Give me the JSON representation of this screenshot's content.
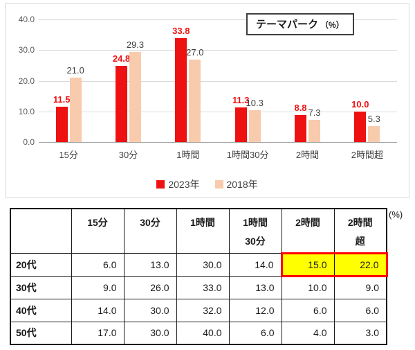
{
  "chart": {
    "title": "テーマパーク",
    "title_unit": "（%）",
    "ylim": [
      0,
      40
    ],
    "y_ticks": [
      "40.0",
      "30.0",
      "20.0",
      "10.0",
      "0.0"
    ],
    "categories": [
      "15分",
      "30分",
      "1時間",
      "1時間30分",
      "2時間",
      "2時間超"
    ],
    "series": [
      {
        "name": "2023年",
        "color": "#ee1111",
        "label_color": "#ee1111",
        "label_bold": true,
        "values": [
          11.5,
          24.8,
          33.8,
          11.3,
          8.8,
          10.0
        ]
      },
      {
        "name": "2018年",
        "color": "#f8cbad",
        "label_color": "#404040",
        "label_bold": false,
        "values": [
          21.0,
          29.3,
          27.0,
          10.3,
          7.3,
          5.3
        ]
      }
    ]
  },
  "table": {
    "unit_label": "(%)",
    "col_headers": [
      [
        "15分",
        ""
      ],
      [
        "30分",
        ""
      ],
      [
        "1時間",
        ""
      ],
      [
        "1時間",
        "30分"
      ],
      [
        "2時間",
        ""
      ],
      [
        "2時間",
        "超"
      ]
    ],
    "rows": [
      {
        "label": "20代",
        "values": [
          "6.0",
          "13.0",
          "30.0",
          "14.0",
          "15.0",
          "22.0"
        ]
      },
      {
        "label": "30代",
        "values": [
          "9.0",
          "26.0",
          "33.0",
          "13.0",
          "10.0",
          "9.0"
        ]
      },
      {
        "label": "40代",
        "values": [
          "14.0",
          "30.0",
          "32.0",
          "12.0",
          "6.0",
          "6.0"
        ]
      },
      {
        "label": "50代",
        "values": [
          "17.0",
          "30.0",
          "40.0",
          "6.0",
          "4.0",
          "3.0"
        ]
      }
    ],
    "highlight": {
      "row": 0,
      "cols": [
        4,
        5
      ],
      "fill": "#ffff00",
      "border": "#ff0000"
    }
  },
  "chart_data": [
    {
      "type": "bar",
      "title": "テーマパーク（%）",
      "categories": [
        "15分",
        "30分",
        "1時間",
        "1時間30分",
        "2時間",
        "2時間超"
      ],
      "series": [
        {
          "name": "2023年",
          "values": [
            11.5,
            24.8,
            33.8,
            11.3,
            8.8,
            10.0
          ]
        },
        {
          "name": "2018年",
          "values": [
            21.0,
            29.3,
            27.0,
            10.3,
            7.3,
            5.3
          ]
        }
      ],
      "xlabel": "",
      "ylabel": "",
      "ylim": [
        0,
        40
      ],
      "grid": true,
      "legend_position": "bottom"
    },
    {
      "type": "table",
      "unit": "(%)",
      "columns": [
        "",
        "15分",
        "30分",
        "1時間",
        "1時間30分",
        "2時間",
        "2時間超"
      ],
      "rows": [
        [
          "20代",
          6.0,
          13.0,
          30.0,
          14.0,
          15.0,
          22.0
        ],
        [
          "30代",
          9.0,
          26.0,
          33.0,
          13.0,
          10.0,
          9.0
        ],
        [
          "40代",
          14.0,
          30.0,
          32.0,
          12.0,
          6.0,
          6.0
        ],
        [
          "50代",
          17.0,
          30.0,
          40.0,
          6.0,
          4.0,
          3.0
        ]
      ],
      "highlighted_cells": [
        [
          "20代",
          "2時間",
          15.0
        ],
        [
          "20代",
          "2時間超",
          22.0
        ]
      ]
    }
  ]
}
